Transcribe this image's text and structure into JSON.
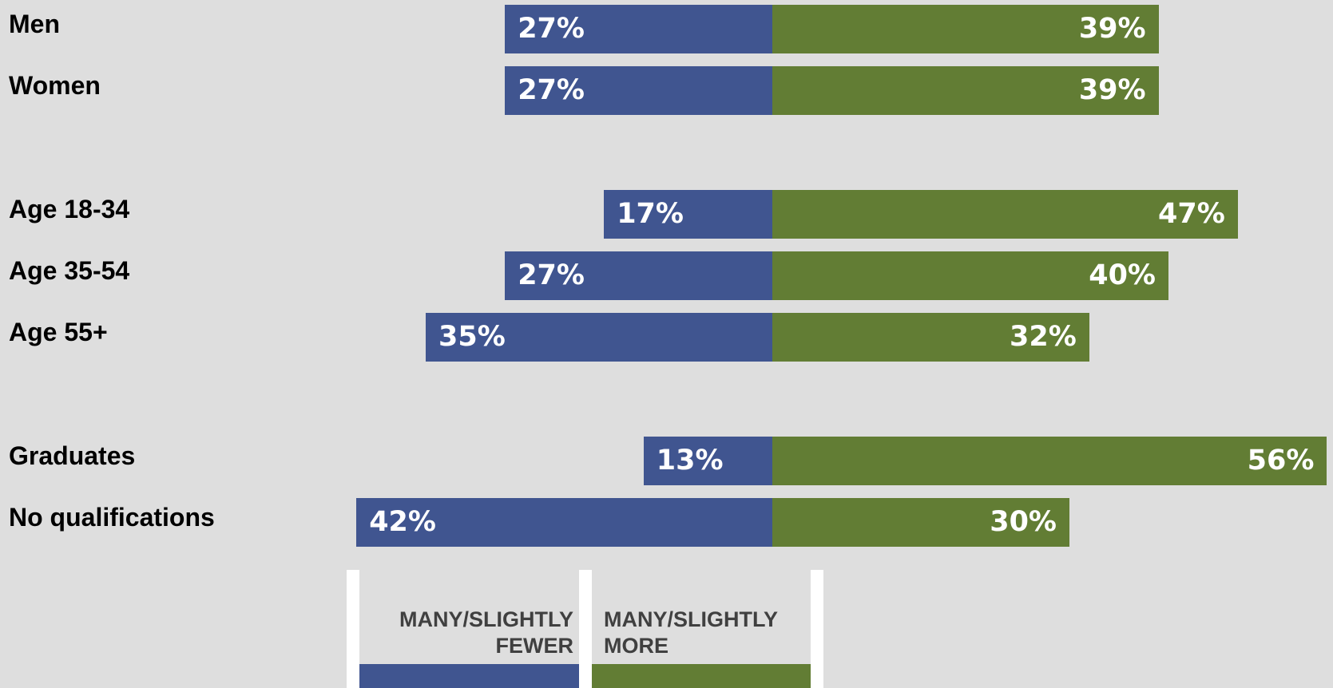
{
  "chart_data": {
    "type": "bar",
    "orientation": "horizontal-diverging",
    "categories": [
      "Men",
      "Women",
      "Age 18-34",
      "Age 35-54",
      "Age 55+",
      "Graduates",
      "No qualifications"
    ],
    "groups": [
      [
        0,
        1
      ],
      [
        2,
        3,
        4
      ],
      [
        5,
        6
      ]
    ],
    "series": [
      {
        "name": "MANY/SLIGHTLY FEWER",
        "color": "#405590",
        "values": [
          27,
          27,
          17,
          27,
          35,
          13,
          42
        ],
        "labels": [
          "27%",
          "27%",
          "17%",
          "27%",
          "35%",
          "13%",
          "42%"
        ]
      },
      {
        "name": "MANY/SLIGHTLY MORE",
        "color": "#627d34",
        "values": [
          39,
          39,
          47,
          40,
          32,
          56,
          30
        ],
        "labels": [
          "39%",
          "39%",
          "47%",
          "40%",
          "32%",
          "56%",
          "30%"
        ]
      }
    ],
    "legend": {
      "position": "bottom",
      "fewer_line1": "MANY/SLIGHTLY",
      "fewer_line2": "FEWER",
      "more_line1": "MANY/SLIGHTLY",
      "more_line2": "MORE"
    },
    "grid": false
  }
}
